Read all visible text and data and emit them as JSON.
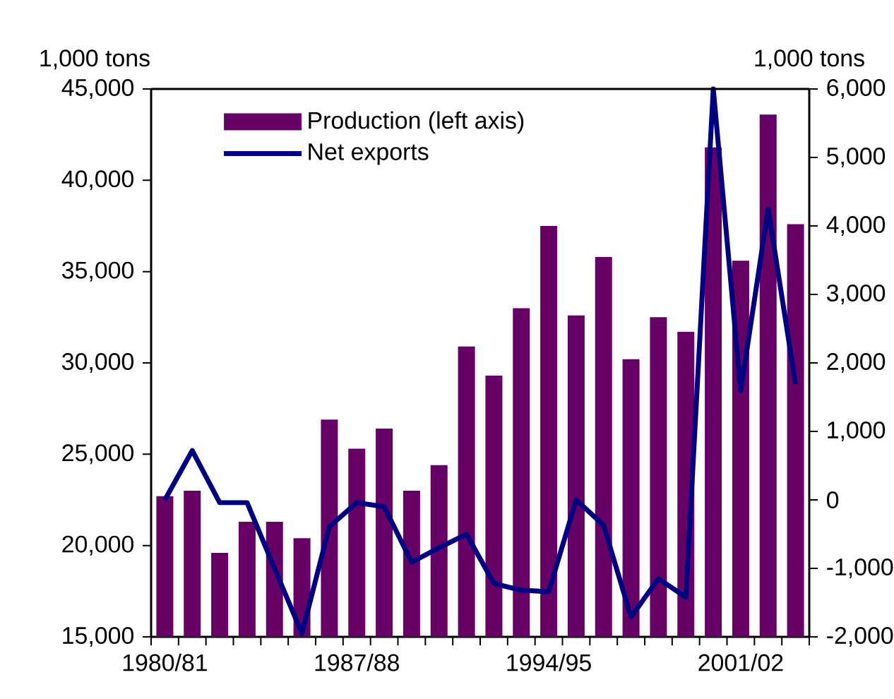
{
  "chart_data": {
    "type": "bar",
    "ylabel": "1,000 tons",
    "y2label": "1,000 tons",
    "categories": [
      "1980/81",
      null,
      null,
      null,
      null,
      null,
      null,
      "1987/88",
      null,
      null,
      null,
      null,
      null,
      null,
      "1994/95",
      null,
      null,
      null,
      null,
      null,
      null,
      "2001/02",
      null,
      null
    ],
    "series": [
      {
        "name": "Production (left axis)",
        "color": "#660066",
        "values": [
          22700,
          23000,
          19600,
          21300,
          21300,
          20400,
          26900,
          25300,
          26400,
          23000,
          24400,
          30900,
          29300,
          33000,
          37500,
          32600,
          35800,
          30200,
          32500,
          31700,
          41800,
          35600,
          43600,
          37600
        ]
      },
      {
        "name": "Net exports",
        "type": "line",
        "axis": "y2",
        "color": "#000080",
        "values": [
          0,
          720,
          -40,
          -40,
          -1000,
          -1950,
          -390,
          -40,
          -100,
          -910,
          -700,
          -500,
          -1220,
          -1320,
          -1340,
          0,
          -370,
          -1710,
          -1150,
          -1420,
          6000,
          1590,
          4250,
          1690
        ]
      }
    ],
    "ylim": [
      15000,
      45000
    ],
    "yticks": [
      {
        "value": 15000,
        "label": "15,000"
      },
      {
        "value": 20000,
        "label": "20,000"
      },
      {
        "value": 25000,
        "label": "25,000"
      },
      {
        "value": 30000,
        "label": "30,000"
      },
      {
        "value": 35000,
        "label": "35,000"
      },
      {
        "value": 40000,
        "label": "40,000"
      },
      {
        "value": 45000,
        "label": "45,000"
      }
    ],
    "y2lim": [
      -2000,
      6000
    ],
    "y2ticks": [
      {
        "value": -2000,
        "label": "-2,000"
      },
      {
        "value": -1000,
        "label": "-1,000"
      },
      0,
      {
        "value": 1000,
        "label": "1,000"
      },
      {
        "value": 2000,
        "label": "2,000"
      },
      {
        "value": 3000,
        "label": "3,000"
      },
      {
        "value": 4000,
        "label": "4,000"
      },
      {
        "value": 5000,
        "label": "5,000"
      },
      {
        "value": 6000,
        "label": "6,000"
      }
    ],
    "legend": "top left",
    "grid": false,
    "marker": "none",
    "line_style": "solid"
  }
}
